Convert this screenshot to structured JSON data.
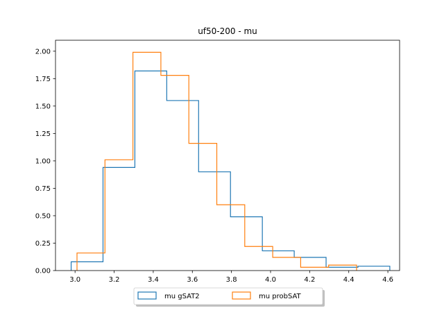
{
  "chart_data": {
    "type": "histogram",
    "title": "uf50-200 - mu",
    "xlabel": "",
    "ylabel": "",
    "xlim": [
      2.9,
      4.66
    ],
    "ylim": [
      0,
      2.1
    ],
    "xticks": [
      "3.0",
      "3.2",
      "3.4",
      "3.6",
      "3.8",
      "4.0",
      "4.2",
      "4.4",
      "4.6"
    ],
    "xtick_values": [
      3.0,
      3.2,
      3.4,
      3.6,
      3.8,
      4.0,
      4.2,
      4.4,
      4.6
    ],
    "yticks": [
      "0.00",
      "0.25",
      "0.50",
      "0.75",
      "1.00",
      "1.25",
      "1.50",
      "1.75",
      "2.00"
    ],
    "ytick_values": [
      0.0,
      0.25,
      0.5,
      0.75,
      1.0,
      1.25,
      1.5,
      1.75,
      2.0
    ],
    "grid": false,
    "legend_position": "bottom-center",
    "series": [
      {
        "name": "mu gSAT2",
        "color": "#1f77b4",
        "bin_edges": [
          2.98,
          3.143,
          3.306,
          3.469,
          3.632,
          3.795,
          3.958,
          4.121,
          4.284,
          4.447,
          4.61
        ],
        "values": [
          0.08,
          0.94,
          1.82,
          1.55,
          0.9,
          0.49,
          0.18,
          0.12,
          0.03,
          0.04
        ]
      },
      {
        "name": "mu probSAT",
        "color": "#ff7f0e",
        "bin_edges": [
          3.01,
          3.153,
          3.296,
          3.439,
          3.582,
          3.725,
          3.868,
          4.011,
          4.154,
          4.297,
          4.44
        ],
        "values": [
          0.16,
          1.01,
          1.99,
          1.78,
          1.16,
          0.6,
          0.22,
          0.12,
          0.03,
          0.05
        ]
      }
    ]
  }
}
